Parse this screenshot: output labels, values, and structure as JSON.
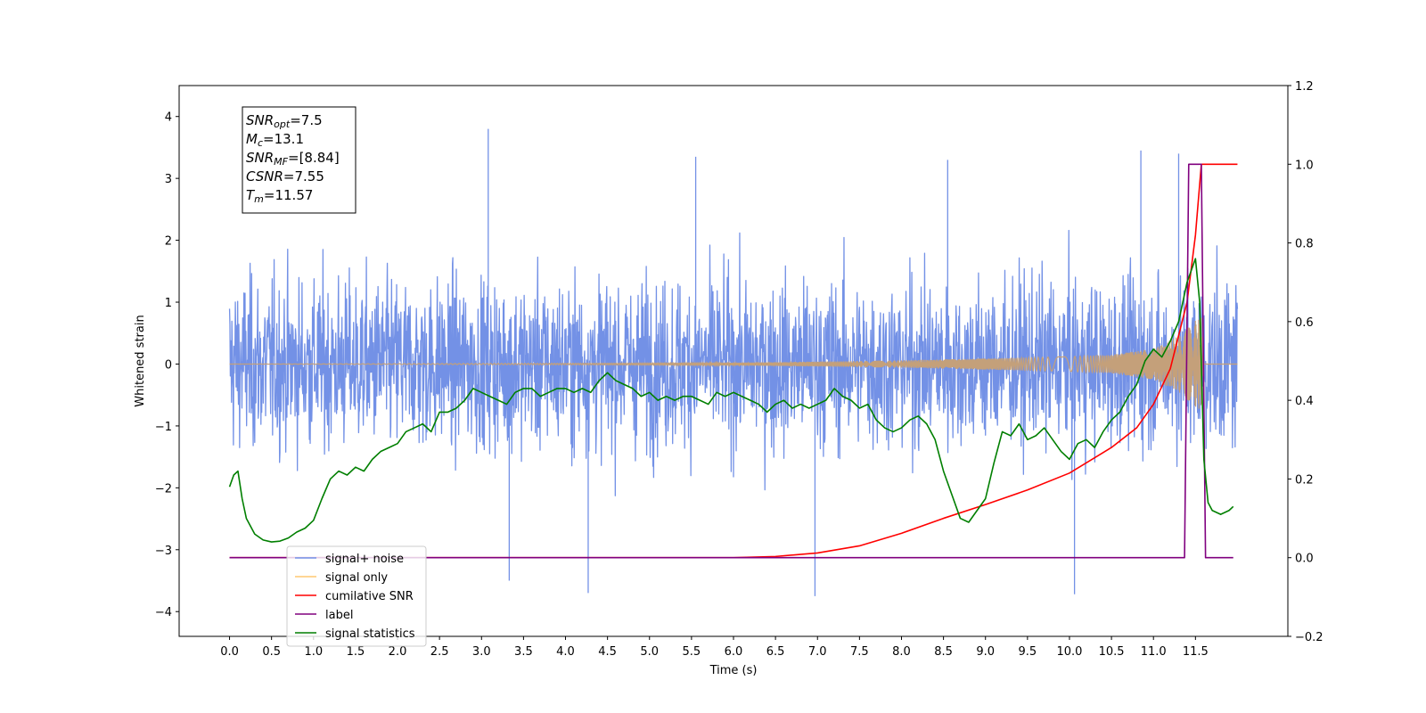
{
  "chart_data": {
    "type": "line",
    "title": "",
    "xlabel": "Time (s)",
    "ylabel_left": "Whitened strain",
    "ylabel_right": "",
    "xlim": [
      -0.6,
      12.6
    ],
    "ylim_left": [
      -4.4,
      4.5
    ],
    "ylim_right": [
      -0.2,
      1.2
    ],
    "grid": false,
    "legend_position": "lower-left",
    "x_tick_labels": [
      "0.0",
      "0.5",
      "1.0",
      "1.5",
      "2.0",
      "2.5",
      "3.0",
      "3.5",
      "4.0",
      "4.5",
      "5.0",
      "5.5",
      "6.0",
      "6.5",
      "7.0",
      "7.5",
      "8.0",
      "8.5",
      "9.0",
      "9.5",
      "10.0",
      "10.5",
      "11.0",
      "11.5"
    ],
    "y_left_tick_labels": [
      "4",
      "3",
      "2",
      "1",
      "0",
      "−1",
      "−2",
      "−3",
      "−4"
    ],
    "y_right_tick_labels": [
      "1.2",
      "1.0",
      "0.8",
      "0.6",
      "0.4",
      "0.2",
      "0.0",
      "−0.2"
    ],
    "annotation": {
      "lines": [
        {
          "sym": "SNR",
          "sub": "opt",
          "value": "=7.5"
        },
        {
          "sym": "M",
          "sub": "c",
          "value": "=13.1"
        },
        {
          "sym": "SNR",
          "sub": "MF",
          "value": "=[8.84]"
        },
        {
          "sym": "CSNR",
          "sub": "",
          "value": "=7.55"
        },
        {
          "sym": "T",
          "sub": "m",
          "value": "=11.57"
        }
      ]
    },
    "series": [
      {
        "name": "signal+ noise",
        "color": "#7391e6",
        "axis": "left",
        "kind": "noise",
        "x_range": [
          0.0,
          12.0
        ],
        "typical_range": [
          -2.5,
          2.5
        ],
        "peak_max": 3.8,
        "peak_min": -3.75
      },
      {
        "name": "signal only",
        "color": "#c4a07a",
        "legend_color": "#ffc870",
        "axis": "left",
        "kind": "chirp",
        "x_range": [
          0.0,
          12.0
        ],
        "envelope": [
          [
            0.0,
            0.0
          ],
          [
            6.0,
            0.02
          ],
          [
            8.0,
            0.06
          ],
          [
            10.0,
            0.12
          ],
          [
            10.5,
            0.15
          ],
          [
            11.0,
            0.25
          ],
          [
            11.3,
            0.45
          ],
          [
            11.5,
            0.7
          ],
          [
            11.57,
            0.75
          ],
          [
            11.6,
            0.0
          ],
          [
            12.0,
            0.0
          ]
        ]
      },
      {
        "name": "cumilative SNR",
        "color": "#ff0000",
        "axis": "right",
        "x": [
          0.0,
          6.0,
          6.5,
          7.0,
          7.5,
          8.0,
          8.5,
          9.0,
          9.5,
          10.0,
          10.5,
          10.8,
          11.0,
          11.2,
          11.4,
          11.5,
          11.57,
          12.0
        ],
        "values": [
          0.0,
          0.0,
          0.003,
          0.012,
          0.03,
          0.062,
          0.1,
          0.135,
          0.172,
          0.215,
          0.28,
          0.33,
          0.39,
          0.48,
          0.65,
          0.82,
          1.0,
          1.0
        ]
      },
      {
        "name": "label",
        "color": "#80007f",
        "axis": "right",
        "x": [
          0.0,
          11.37,
          11.42,
          11.57,
          11.62,
          11.95
        ],
        "values": [
          0.0,
          0.0,
          1.0,
          1.0,
          0.0,
          0.0
        ]
      },
      {
        "name": "signal statistics",
        "color": "#007f00",
        "axis": "right",
        "x": [
          0.0,
          0.05,
          0.1,
          0.15,
          0.2,
          0.3,
          0.4,
          0.5,
          0.6,
          0.7,
          0.8,
          0.9,
          1.0,
          1.1,
          1.2,
          1.3,
          1.4,
          1.5,
          1.6,
          1.7,
          1.8,
          1.9,
          2.0,
          2.1,
          2.2,
          2.3,
          2.4,
          2.5,
          2.6,
          2.7,
          2.8,
          2.9,
          3.0,
          3.1,
          3.2,
          3.3,
          3.4,
          3.5,
          3.6,
          3.7,
          3.8,
          3.9,
          4.0,
          4.1,
          4.2,
          4.3,
          4.4,
          4.5,
          4.6,
          4.7,
          4.8,
          4.9,
          5.0,
          5.1,
          5.2,
          5.3,
          5.4,
          5.5,
          5.6,
          5.7,
          5.8,
          5.9,
          6.0,
          6.1,
          6.2,
          6.3,
          6.4,
          6.5,
          6.6,
          6.7,
          6.8,
          6.9,
          7.0,
          7.1,
          7.2,
          7.3,
          7.4,
          7.5,
          7.6,
          7.7,
          7.8,
          7.9,
          8.0,
          8.1,
          8.2,
          8.3,
          8.4,
          8.5,
          8.6,
          8.7,
          8.8,
          8.9,
          9.0,
          9.1,
          9.2,
          9.3,
          9.4,
          9.5,
          9.6,
          9.7,
          9.8,
          9.9,
          10.0,
          10.1,
          10.2,
          10.3,
          10.4,
          10.5,
          10.6,
          10.7,
          10.8,
          10.9,
          11.0,
          11.1,
          11.2,
          11.3,
          11.4,
          11.5,
          11.55,
          11.6,
          11.65,
          11.7,
          11.8,
          11.9,
          11.95
        ],
        "values": [
          0.18,
          0.21,
          0.22,
          0.15,
          0.1,
          0.06,
          0.045,
          0.04,
          0.042,
          0.05,
          0.065,
          0.075,
          0.095,
          0.15,
          0.2,
          0.22,
          0.21,
          0.23,
          0.22,
          0.25,
          0.27,
          0.28,
          0.29,
          0.32,
          0.33,
          0.34,
          0.32,
          0.37,
          0.37,
          0.38,
          0.4,
          0.43,
          0.42,
          0.41,
          0.4,
          0.39,
          0.42,
          0.43,
          0.43,
          0.41,
          0.42,
          0.43,
          0.43,
          0.42,
          0.43,
          0.42,
          0.45,
          0.47,
          0.45,
          0.44,
          0.43,
          0.41,
          0.42,
          0.4,
          0.41,
          0.4,
          0.41,
          0.41,
          0.4,
          0.39,
          0.42,
          0.41,
          0.42,
          0.41,
          0.4,
          0.39,
          0.37,
          0.39,
          0.4,
          0.38,
          0.39,
          0.38,
          0.39,
          0.4,
          0.43,
          0.41,
          0.4,
          0.38,
          0.39,
          0.35,
          0.33,
          0.32,
          0.33,
          0.35,
          0.36,
          0.34,
          0.3,
          0.22,
          0.16,
          0.1,
          0.09,
          0.12,
          0.15,
          0.24,
          0.32,
          0.31,
          0.34,
          0.3,
          0.31,
          0.33,
          0.3,
          0.27,
          0.25,
          0.29,
          0.3,
          0.28,
          0.32,
          0.35,
          0.37,
          0.41,
          0.44,
          0.5,
          0.53,
          0.51,
          0.55,
          0.6,
          0.7,
          0.76,
          0.65,
          0.25,
          0.14,
          0.12,
          0.11,
          0.12,
          0.13
        ]
      }
    ]
  }
}
